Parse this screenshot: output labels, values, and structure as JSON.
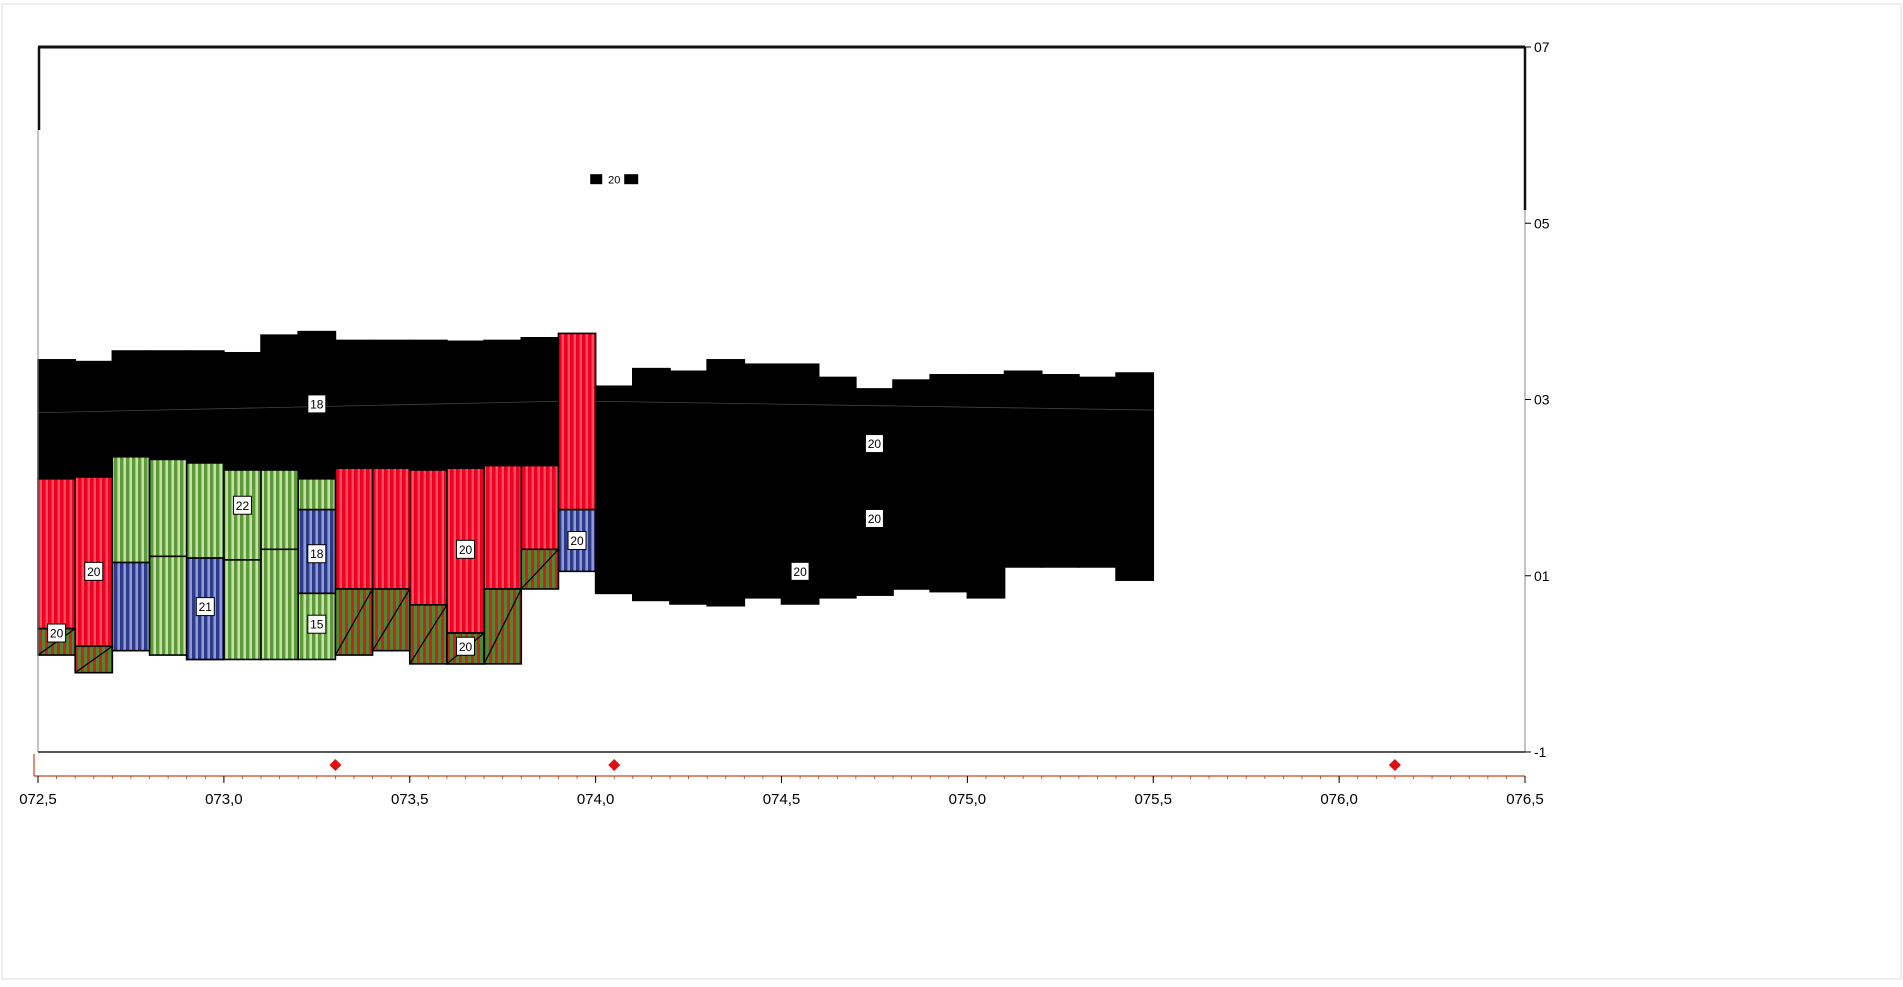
{
  "colors": {
    "black": "#000000",
    "red": "#ee0022",
    "green": "#66aa44",
    "blue": "#334499",
    "marker": "#dd1111",
    "frame": "#111111",
    "baseline": "#cc4422"
  },
  "chart_data": {
    "type": "area",
    "title": "",
    "xlabel": "",
    "ylabel": "",
    "xlim": [
      72.5,
      76.5
    ],
    "ylim": [
      -1,
      7
    ],
    "grid": false,
    "x_tick_labels": [
      "072,5",
      "073,0",
      "073,5",
      "074,0",
      "074,5",
      "075,0",
      "075,5",
      "076,0",
      "076,5"
    ],
    "y_tick_labels": [
      "-1",
      "01",
      "03",
      "05",
      "07"
    ],
    "layers": [
      {
        "fill": "black",
        "label": "18",
        "label_at": [
          73.25,
          2.95
        ],
        "segments": [
          {
            "x0": 72.5,
            "x1": 72.6,
            "y0": 2.1,
            "y1": 3.45
          },
          {
            "x0": 72.6,
            "x1": 72.7,
            "y0": 2.1,
            "y1": 3.43
          },
          {
            "x0": 72.7,
            "x1": 72.8,
            "y0": 2.35,
            "y1": 3.55
          },
          {
            "x0": 72.8,
            "x1": 72.9,
            "y0": 2.32,
            "y1": 3.55
          },
          {
            "x0": 72.9,
            "x1": 73.0,
            "y0": 2.28,
            "y1": 3.55
          },
          {
            "x0": 73.0,
            "x1": 73.1,
            "y0": 2.2,
            "y1": 3.53
          },
          {
            "x0": 73.1,
            "x1": 73.2,
            "y0": 2.2,
            "y1": 3.73
          },
          {
            "x0": 73.2,
            "x1": 73.3,
            "y0": 2.1,
            "y1": 3.77
          },
          {
            "x0": 73.3,
            "x1": 73.4,
            "y0": 2.22,
            "y1": 3.67
          },
          {
            "x0": 73.4,
            "x1": 73.5,
            "y0": 2.22,
            "y1": 3.67
          },
          {
            "x0": 73.5,
            "x1": 73.6,
            "y0": 2.2,
            "y1": 3.67
          },
          {
            "x0": 73.6,
            "x1": 73.7,
            "y0": 2.22,
            "y1": 3.66
          },
          {
            "x0": 73.7,
            "x1": 73.8,
            "y0": 2.25,
            "y1": 3.67
          },
          {
            "x0": 73.8,
            "x1": 73.9,
            "y0": 2.25,
            "y1": 3.7
          }
        ]
      },
      {
        "fill": "black",
        "label": "20",
        "label_at": [
          74.75,
          2.5
        ],
        "segments": [
          {
            "x0": 74.0,
            "x1": 74.1,
            "y0": 0.8,
            "y1": 3.15
          },
          {
            "x0": 74.1,
            "x1": 74.2,
            "y0": 0.72,
            "y1": 3.35
          },
          {
            "x0": 74.2,
            "x1": 74.3,
            "y0": 0.68,
            "y1": 3.32
          },
          {
            "x0": 74.3,
            "x1": 74.4,
            "y0": 0.66,
            "y1": 3.45
          },
          {
            "x0": 74.4,
            "x1": 74.5,
            "y0": 0.75,
            "y1": 3.4
          },
          {
            "x0": 74.5,
            "x1": 74.6,
            "y0": 0.68,
            "y1": 3.4
          },
          {
            "x0": 74.6,
            "x1": 74.7,
            "y0": 0.75,
            "y1": 3.25
          },
          {
            "x0": 74.7,
            "x1": 74.8,
            "y0": 0.78,
            "y1": 3.12
          },
          {
            "x0": 74.8,
            "x1": 74.9,
            "y0": 0.85,
            "y1": 3.22
          },
          {
            "x0": 74.9,
            "x1": 75.0,
            "y0": 0.82,
            "y1": 3.28
          },
          {
            "x0": 75.0,
            "x1": 75.1,
            "y0": 0.75,
            "y1": 3.28
          },
          {
            "x0": 75.1,
            "x1": 75.2,
            "y0": 1.1,
            "y1": 3.32
          },
          {
            "x0": 75.2,
            "x1": 75.3,
            "y0": 1.1,
            "y1": 3.28
          },
          {
            "x0": 75.3,
            "x1": 75.4,
            "y0": 1.1,
            "y1": 3.25
          },
          {
            "x0": 75.4,
            "x1": 75.5,
            "y0": 0.95,
            "y1": 3.3
          }
        ]
      },
      {
        "fill": "red",
        "label": "20",
        "label_at": [
          72.65,
          1.05
        ],
        "segments": [
          {
            "x0": 72.5,
            "x1": 72.6,
            "y0": 0.4,
            "y1": 2.1
          },
          {
            "x0": 72.6,
            "x1": 72.7,
            "y0": 0.2,
            "y1": 2.12
          }
        ]
      },
      {
        "fill": "red",
        "label": "20",
        "label_at": [
          73.65,
          1.3
        ],
        "segments": [
          {
            "x0": 73.3,
            "x1": 73.4,
            "y0": 0.85,
            "y1": 2.22
          },
          {
            "x0": 73.4,
            "x1": 73.5,
            "y0": 0.85,
            "y1": 2.22
          },
          {
            "x0": 73.5,
            "x1": 73.6,
            "y0": 0.67,
            "y1": 2.2
          },
          {
            "x0": 73.6,
            "x1": 73.7,
            "y0": 0.35,
            "y1": 2.22
          },
          {
            "x0": 73.7,
            "x1": 73.8,
            "y0": 0.85,
            "y1": 2.25
          },
          {
            "x0": 73.8,
            "x1": 73.9,
            "y0": 1.3,
            "y1": 2.25
          },
          {
            "x0": 73.9,
            "x1": 74.0,
            "y0": 1.75,
            "y1": 3.75
          }
        ]
      },
      {
        "fill": "green",
        "label": "22",
        "label_at": [
          73.05,
          1.8
        ],
        "segments": [
          {
            "x0": 72.7,
            "x1": 72.8,
            "y0": 1.15,
            "y1": 2.35
          },
          {
            "x0": 72.8,
            "x1": 72.9,
            "y0": 1.22,
            "y1": 2.32
          },
          {
            "x0": 72.9,
            "x1": 73.0,
            "y0": 1.2,
            "y1": 2.28
          },
          {
            "x0": 73.0,
            "x1": 73.1,
            "y0": 1.18,
            "y1": 2.2
          },
          {
            "x0": 73.1,
            "x1": 73.2,
            "y0": 1.3,
            "y1": 2.2
          },
          {
            "x0": 73.2,
            "x1": 73.3,
            "y0": 1.75,
            "y1": 2.1
          }
        ]
      },
      {
        "fill": "green",
        "label": "21",
        "label_at": [
          72.95,
          0.65
        ],
        "segments": [
          {
            "x0": 72.8,
            "x1": 72.9,
            "y0": 0.1,
            "y1": 1.22
          },
          {
            "x0": 72.9,
            "x1": 73.0,
            "y0": 0.05,
            "y1": 1.2
          },
          {
            "x0": 73.0,
            "x1": 73.1,
            "y0": 0.05,
            "y1": 1.18
          },
          {
            "x0": 73.1,
            "x1": 73.2,
            "y0": 0.05,
            "y1": 1.3
          }
        ]
      },
      {
        "fill": "blue",
        "segments": [
          {
            "x0": 72.7,
            "x1": 72.8,
            "y0": 0.15,
            "y1": 1.15
          },
          {
            "x0": 72.9,
            "x1": 73.0,
            "y0": 0.05,
            "y1": 1.2
          }
        ]
      },
      {
        "fill": "blue",
        "label": "18",
        "label_at": [
          73.25,
          1.25
        ],
        "segments": [
          {
            "x0": 73.2,
            "x1": 73.3,
            "y0": 0.8,
            "y1": 1.75
          }
        ]
      },
      {
        "fill": "blue",
        "label": "20",
        "label_at": [
          73.95,
          1.4
        ],
        "segments": [
          {
            "x0": 73.9,
            "x1": 74.0,
            "y0": 1.05,
            "y1": 1.75
          }
        ]
      },
      {
        "fill": "green",
        "label": "15",
        "label_at": [
          73.25,
          0.45
        ],
        "segments": [
          {
            "x0": 73.2,
            "x1": 73.3,
            "y0": 0.05,
            "y1": 0.8
          }
        ]
      },
      {
        "fill": "green",
        "label": "20",
        "label_at": [
          73.65,
          0.2
        ],
        "segments": [
          {
            "x0": 73.6,
            "x1": 73.7,
            "y0": 0.0,
            "y1": 0.35
          }
        ]
      },
      {
        "fill": "green",
        "hatched": true,
        "segments": [
          {
            "x0": 72.5,
            "x1": 72.6,
            "y0": 0.1,
            "y1": 0.4
          },
          {
            "x0": 72.6,
            "x1": 72.7,
            "y0": -0.1,
            "y1": 0.2
          },
          {
            "x0": 73.3,
            "x1": 73.4,
            "y0": 0.1,
            "y1": 0.85
          },
          {
            "x0": 73.4,
            "x1": 73.5,
            "y0": 0.15,
            "y1": 0.85
          },
          {
            "x0": 73.5,
            "x1": 73.6,
            "y0": 0.0,
            "y1": 0.67
          },
          {
            "x0": 73.6,
            "x1": 73.7,
            "y0": 0.0,
            "y1": 0.35
          },
          {
            "x0": 73.7,
            "x1": 73.8,
            "y0": 0.0,
            "y1": 0.85
          },
          {
            "x0": 73.8,
            "x1": 73.9,
            "y0": 0.85,
            "y1": 1.3
          }
        ]
      }
    ],
    "standalone_labels": [
      {
        "text": "20",
        "x": 72.55,
        "y": 0.35
      },
      {
        "text": "20",
        "x": 74.75,
        "y": 1.65
      },
      {
        "text": "20",
        "x": 74.55,
        "y": 1.05
      }
    ],
    "legend_swatch": {
      "text": "20",
      "x": 74.05,
      "y": 5.5
    },
    "markers": [
      {
        "x": 73.3
      },
      {
        "x": 74.05
      },
      {
        "x": 76.15
      }
    ]
  }
}
